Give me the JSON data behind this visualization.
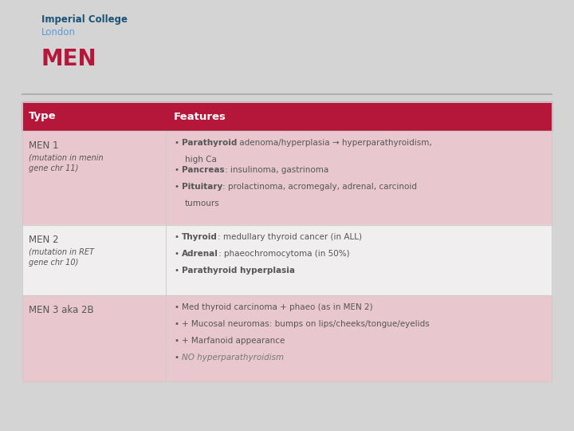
{
  "bg_color": "#d4d4d4",
  "white_bg": "#f0f0f0",
  "header_bg": "#b5173a",
  "row1_bg": "#e8c8ce",
  "row2_bg": "#f0eeee",
  "row3_bg": "#e8c8ce",
  "header_text_color": "#ffffff",
  "title_color": "#b5173a",
  "college_color": "#1a5276",
  "london_color": "#5b9bd5",
  "main_text_color": "#555555",
  "italic_text_color": "#777777",
  "title": "MEN",
  "college_name": "Imperial College",
  "college_city": "London",
  "col_headers": [
    "Type",
    "Features"
  ],
  "divider_color": "#cccccc",
  "separator_color": "#b0b0b0",
  "rows": [
    {
      "type_main": "MEN 1",
      "type_sub": "(mutation in menin\ngene chr 11)",
      "bg": "#e8c8ce",
      "features": [
        {
          "bold": "Parathyroid",
          "rest": " adenoma/hyperplasia → hyperparathyroidism,\n    high Ca",
          "italic": false
        },
        {
          "bold": "Pancreas",
          "rest": ": insulinoma, gastrinoma",
          "italic": false
        },
        {
          "bold": "Pituitary",
          "rest": ": prolactinoma, acromegaly, adrenal, carcinoid\n    tumours",
          "italic": false
        }
      ]
    },
    {
      "type_main": "MEN 2",
      "type_sub": "(mutation in RET\ngene chr 10)",
      "bg": "#f0eeee",
      "features": [
        {
          "bold": "Thyroid",
          "rest": ": medullary thyroid cancer (in ALL)",
          "italic": false
        },
        {
          "bold": "Adrenal",
          "rest": ": phaeochromocytoma (in 50%)",
          "italic": false
        },
        {
          "bold": "Parathyroid hyperplasia",
          "rest": "",
          "italic": false
        }
      ]
    },
    {
      "type_main": "MEN 3 aka 2B",
      "type_sub": "",
      "bg": "#e8c8ce",
      "features": [
        {
          "bold": "",
          "rest": "Med thyroid carcinoma + phaeo (as in MEN 2)",
          "italic": false
        },
        {
          "bold": "",
          "rest": "+ Mucosal neuromas: bumps on lips/cheeks/tongue/eyelids",
          "italic": false
        },
        {
          "bold": "",
          "rest": "+ Marfanoid appearance",
          "italic": false
        },
        {
          "bold": "",
          "rest": "NO hyperparathyroidism",
          "italic": true
        }
      ]
    }
  ]
}
